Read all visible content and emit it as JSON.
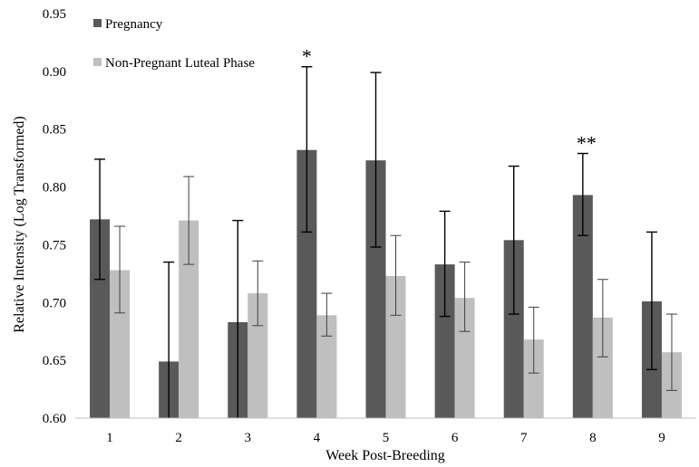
{
  "chart_data": {
    "type": "bar",
    "xlabel": "Week Post-Breeding",
    "ylabel": "Relative Intensity (Log Transformed)",
    "ylim": [
      0.6,
      0.95
    ],
    "yticks": [
      "0.60",
      "0.65",
      "0.70",
      "0.75",
      "0.80",
      "0.85",
      "0.90",
      "0.95"
    ],
    "categories": [
      "1",
      "2",
      "3",
      "4",
      "5",
      "6",
      "7",
      "8",
      "9"
    ],
    "grid": false,
    "legend_position": "top-left",
    "series": [
      {
        "name": "Pregnancy",
        "color": "#595959",
        "values": [
          0.772,
          0.649,
          0.683,
          0.832,
          0.823,
          0.733,
          0.754,
          0.793,
          0.701
        ],
        "error_low": [
          0.72,
          0.6,
          0.6,
          0.761,
          0.748,
          0.688,
          0.69,
          0.758,
          0.642
        ],
        "error_high": [
          0.824,
          0.735,
          0.771,
          0.904,
          0.899,
          0.779,
          0.818,
          0.829,
          0.761
        ]
      },
      {
        "name": "Non-Pregnant Luteal Phase",
        "color": "#bfbfbf",
        "values": [
          0.728,
          0.771,
          0.708,
          0.689,
          0.723,
          0.704,
          0.668,
          0.687,
          0.657
        ],
        "error_low": [
          0.691,
          0.733,
          0.68,
          0.671,
          0.689,
          0.675,
          0.639,
          0.653,
          0.624
        ],
        "error_high": [
          0.766,
          0.809,
          0.736,
          0.708,
          0.758,
          0.735,
          0.696,
          0.72,
          0.69
        ]
      }
    ],
    "annotations": [
      {
        "category": "4",
        "text": "*"
      },
      {
        "category": "8",
        "text": "**"
      }
    ]
  }
}
